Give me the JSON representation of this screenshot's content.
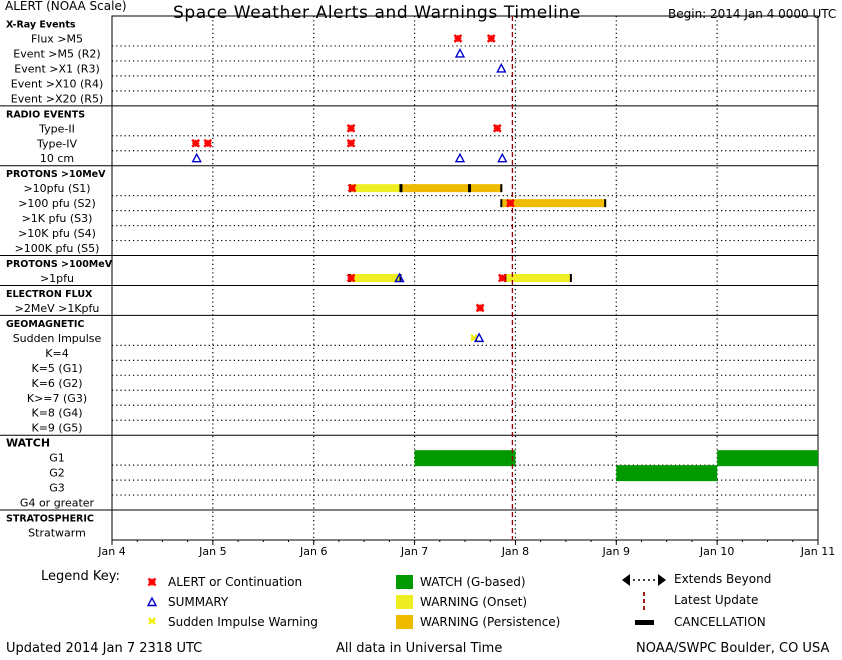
{
  "header": {
    "alert_scale": "ALERT (NOAA Scale)",
    "title": "Space Weather Alerts and Warnings Timeline",
    "begin": "Begin: 2014 Jan 4 0000 UTC"
  },
  "footer": {
    "updated": "Updated 2014 Jan  7 2318 UTC",
    "timezone": "All data in Universal Time",
    "source": "NOAA/SWPC Boulder, CO USA"
  },
  "legend": {
    "title": "Legend Key:",
    "items": [
      {
        "label": "ALERT or Continuation",
        "symbol": "alert",
        "color": "#ff0000"
      },
      {
        "label": "SUMMARY",
        "symbol": "summary",
        "color": "#0000cc"
      },
      {
        "label": "Sudden Impulse Warning",
        "symbol": "si-warning",
        "color": "#eeee00"
      },
      {
        "label": "WATCH (G-based)",
        "symbol": "watch",
        "color": "#009900"
      },
      {
        "label": "WARNING (Onset)",
        "symbol": "warning-onset",
        "color": "#eeee22"
      },
      {
        "label": "WARNING (Persistence)",
        "symbol": "warning-persistence",
        "color": "#eebb00"
      },
      {
        "label": "Extends Beyond",
        "symbol": "extends-beyond",
        "color": "#000000"
      },
      {
        "label": "Latest Update",
        "symbol": "latest-update",
        "color": "#990000"
      },
      {
        "label": "CANCELLATION",
        "symbol": "cancellation",
        "color": "#000000"
      }
    ]
  },
  "chart_data": {
    "type": "timeline",
    "title": "Space Weather Alerts and Warnings Timeline",
    "x_unit": "days since 2014 Jan 4 0000 UTC",
    "xlim": [
      0,
      7
    ],
    "x_ticks": [
      {
        "t": 0,
        "label": "Jan 4"
      },
      {
        "t": 1,
        "label": "Jan 5"
      },
      {
        "t": 2,
        "label": "Jan 6"
      },
      {
        "t": 3,
        "label": "Jan 7"
      },
      {
        "t": 4,
        "label": "Jan 8"
      },
      {
        "t": 5,
        "label": "Jan 9"
      },
      {
        "t": 6,
        "label": "Jan 10"
      },
      {
        "t": 7,
        "label": "Jan 11"
      }
    ],
    "latest_update_t": 3.97,
    "rows": [
      {
        "label": "X-Ray Events",
        "header": true
      },
      {
        "label": "Flux >M5"
      },
      {
        "label": "Event >M5 (R2)"
      },
      {
        "label": "Event >X1 (R3)"
      },
      {
        "label": "Event >X10 (R4)"
      },
      {
        "label": "Event >X20 (R5)"
      },
      {
        "label": "RADIO EVENTS",
        "header": true
      },
      {
        "label": "Type-II"
      },
      {
        "label": "Type-IV"
      },
      {
        "label": "10 cm"
      },
      {
        "label": "PROTONS >10MeV",
        "header": true
      },
      {
        "label": ">10pfu (S1)"
      },
      {
        "label": ">100 pfu (S2)"
      },
      {
        "label": ">1K pfu (S3)"
      },
      {
        "label": ">10K pfu (S4)"
      },
      {
        "label": ">100K pfu (S5)"
      },
      {
        "label": "PROTONS >100MeV",
        "header": true
      },
      {
        "label": ">1pfu"
      },
      {
        "label": "ELECTRON FLUX",
        "header": true
      },
      {
        "label": ">2MeV >1Kpfu"
      },
      {
        "label": "GEOMAGNETIC",
        "header": true
      },
      {
        "label": "Sudden Impulse"
      },
      {
        "label": "K=4"
      },
      {
        "label": "K=5 (G1)"
      },
      {
        "label": "K=6 (G2)"
      },
      {
        "label": "K>=7 (G3)"
      },
      {
        "label": "K=8 (G4)"
      },
      {
        "label": "K=9 (G5)"
      },
      {
        "label": "WATCH",
        "header": true,
        "big": true
      },
      {
        "label": "G1"
      },
      {
        "label": "G2"
      },
      {
        "label": "G3"
      },
      {
        "label": "G4 or greater"
      },
      {
        "label": "STRATOSPHERIC",
        "header": true
      },
      {
        "label": "Stratwarm"
      }
    ],
    "events": [
      {
        "row": 1,
        "type": "alert",
        "t": 3.43
      },
      {
        "row": 1,
        "type": "alert",
        "t": 3.76
      },
      {
        "row": 2,
        "type": "summary",
        "t": 3.45
      },
      {
        "row": 3,
        "type": "summary",
        "t": 3.86
      },
      {
        "row": 7,
        "type": "alert",
        "t": 2.37
      },
      {
        "row": 7,
        "type": "alert",
        "t": 3.82
      },
      {
        "row": 8,
        "type": "alert",
        "t": 0.83
      },
      {
        "row": 8,
        "type": "alert",
        "t": 0.95
      },
      {
        "row": 8,
        "type": "alert",
        "t": 2.37
      },
      {
        "row": 9,
        "type": "summary",
        "t": 0.84
      },
      {
        "row": 9,
        "type": "summary",
        "t": 3.45
      },
      {
        "row": 9,
        "type": "summary",
        "t": 3.87
      },
      {
        "row": 11,
        "type": "warning-onset",
        "start": 2.36,
        "end": 2.86
      },
      {
        "row": 11,
        "type": "warning-persistence",
        "start": 2.87,
        "end": 3.54
      },
      {
        "row": 11,
        "type": "warning-persistence",
        "start": 3.55,
        "end": 3.86
      },
      {
        "row": 11,
        "type": "alert",
        "t": 2.38
      },
      {
        "row": 12,
        "type": "warning-persistence",
        "start": 3.86,
        "end": 4.89
      },
      {
        "row": 12,
        "type": "alert",
        "t": 3.95
      },
      {
        "row": 17,
        "type": "warning-onset",
        "start": 2.36,
        "end": 2.86
      },
      {
        "row": 17,
        "type": "alert",
        "t": 2.37
      },
      {
        "row": 17,
        "type": "summary",
        "t": 2.85
      },
      {
        "row": 17,
        "type": "alert",
        "t": 3.87
      },
      {
        "row": 17,
        "type": "warning-onset",
        "start": 3.9,
        "end": 4.55
      },
      {
        "row": 19,
        "type": "alert",
        "t": 3.65
      },
      {
        "row": 21,
        "type": "si-warning",
        "t": 3.59
      },
      {
        "row": 21,
        "type": "summary",
        "t": 3.64
      },
      {
        "row": 29,
        "type": "watch",
        "start": 3.0,
        "end": 4.0
      },
      {
        "row": 30,
        "type": "watch",
        "start": 5.0,
        "end": 6.0
      },
      {
        "row": 29,
        "type": "watch",
        "start": 6.0,
        "end": 7.0
      }
    ]
  }
}
